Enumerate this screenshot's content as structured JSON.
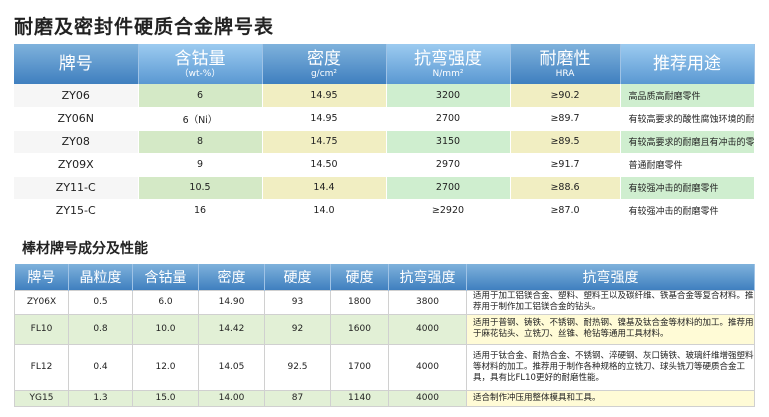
{
  "title1": "耐磨及密封件硬质合金牌号表",
  "title2": "棒材牌号成分及性能",
  "table1": {
    "headers": [
      {
        "main": "牌号",
        "sub": ""
      },
      {
        "main": "含钴量",
        "sub": "（wt-%）"
      },
      {
        "main": "密度",
        "sub": "g/cm²"
      },
      {
        "main": "抗弯强度",
        "sub": "N/mm²"
      },
      {
        "main": "耐磨性",
        "sub": "HRA"
      },
      {
        "main": "推荐用途",
        "sub": ""
      }
    ],
    "rows": [
      [
        "ZY06",
        "6",
        "14.95",
        "3200",
        "≥90.2",
        "高品质高耐磨零件"
      ],
      [
        "ZY06N",
        "6（Ni）",
        "14.95",
        "2700",
        "≥89.7",
        "有较高要求的酸性腐蚀环境的耐磨零件"
      ],
      [
        "ZY08",
        "8",
        "14.75",
        "3150",
        "≥89.5",
        "有较高要求的耐磨且有冲击的零件"
      ],
      [
        "ZY09X",
        "9",
        "14.50",
        "2970",
        "≥91.7",
        "普通耐磨零件"
      ],
      [
        "ZY11-C",
        "10.5",
        "14.4",
        "2700",
        "≥88.6",
        "有较强冲击的耐磨零件"
      ],
      [
        "ZY15-C",
        "16",
        "14.0",
        "≥2920",
        "≥87.0",
        "有较强冲击的耐磨零件"
      ]
    ]
  },
  "table2": {
    "headers": [
      "牌号",
      "晶粒度",
      "含钴量",
      "密度",
      "硬度",
      "硬度",
      "抗弯强度",
      "抗弯强度"
    ],
    "rows": [
      [
        "ZY06X",
        "0.5",
        "6.0",
        "14.90",
        "93",
        "1800",
        "3800",
        "适用于加工铝镁合金、塑料、塑料王以及碳纤维、铁基合金等复合材料。推荐用于制作加工铝镁合金的钻头。"
      ],
      [
        "FL10",
        "0.8",
        "10.0",
        "14.42",
        "92",
        "1600",
        "4000",
        "适用于普钢、铸铁、不锈钢、耐热钢、镍基及钛合金等材料的加工。推荐用于麻花钻头、立铣刀、丝锥、枪钻等通用工具材料。"
      ],
      [
        "FL12",
        "0.4",
        "12.0",
        "14.05",
        "92.5",
        "1700",
        "4000",
        "适用于钛合金、耐热合金、不锈钢、淬硬钢、灰口铸铁、玻璃纤维增强塑料等材料的加工。推荐用于制作各种规格的立铣刀、球头铣刀等硬质合金工具，具有比FL10更好的耐磨性能。"
      ],
      [
        "YG15",
        "1.3",
        "15.0",
        "14.00",
        "87",
        "1140",
        "4000",
        "适合制作冲压用整体模具和工具。"
      ]
    ]
  }
}
